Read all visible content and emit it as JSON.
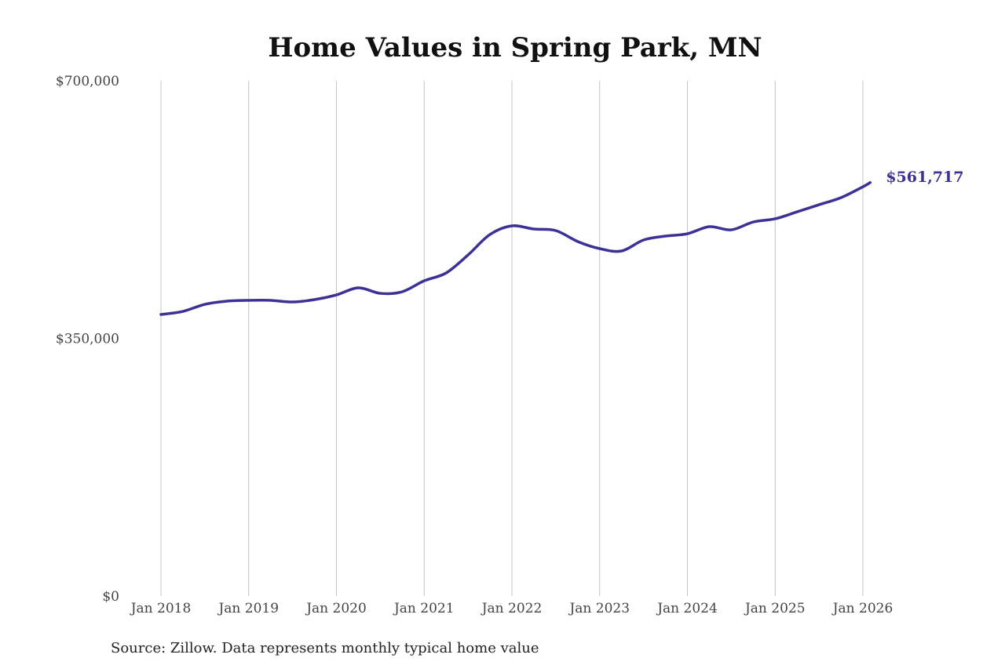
{
  "chart_data": {
    "type": "line",
    "title": "Home Values in Spring Park, MN",
    "xlabel": "",
    "ylabel": "",
    "ylim": [
      0,
      700000
    ],
    "y_ticks": [
      {
        "value": 0,
        "label": "$0"
      },
      {
        "value": 350000,
        "label": "$350,000"
      },
      {
        "value": 700000,
        "label": "$700,000"
      }
    ],
    "x_ticks": [
      {
        "value": "2018-01",
        "label": "Jan 2018"
      },
      {
        "value": "2019-01",
        "label": "Jan 2019"
      },
      {
        "value": "2020-01",
        "label": "Jan 2020"
      },
      {
        "value": "2021-01",
        "label": "Jan 2021"
      },
      {
        "value": "2022-01",
        "label": "Jan 2022"
      },
      {
        "value": "2023-01",
        "label": "Jan 2023"
      },
      {
        "value": "2024-01",
        "label": "Jan 2024"
      },
      {
        "value": "2025-01",
        "label": "Jan 2025"
      },
      {
        "value": "2026-01",
        "label": "Jan 2026"
      }
    ],
    "grid": {
      "vertical": true,
      "horizontal": false
    },
    "line_color": "#3b3196",
    "series": [
      {
        "x": [
          "2018-01",
          "2018-04",
          "2018-07",
          "2018-10",
          "2019-01",
          "2019-04",
          "2019-07",
          "2019-10",
          "2020-01",
          "2020-04",
          "2020-07",
          "2020-10",
          "2021-01",
          "2021-04",
          "2021-07",
          "2021-10",
          "2022-01",
          "2022-04",
          "2022-07",
          "2022-10",
          "2023-01",
          "2023-04",
          "2023-07",
          "2023-10",
          "2024-01",
          "2024-04",
          "2024-07",
          "2024-10",
          "2025-01",
          "2025-04",
          "2025-07",
          "2025-10",
          "2026-01",
          "2026-02"
        ],
        "values": [
          382500,
          386700,
          396300,
          400600,
          401700,
          401700,
          399500,
          402700,
          409100,
          418700,
          411200,
          413400,
          428300,
          438900,
          463400,
          491200,
          502900,
          498600,
          496500,
          481600,
          472000,
          468800,
          483700,
          489000,
          492200,
          501800,
          497500,
          508200,
          512500,
          522000,
          531600,
          541200,
          556000,
          561717
        ]
      }
    ],
    "end_label": "$561,717"
  },
  "source": "Source: Zillow. Data represents monthly typical home value"
}
